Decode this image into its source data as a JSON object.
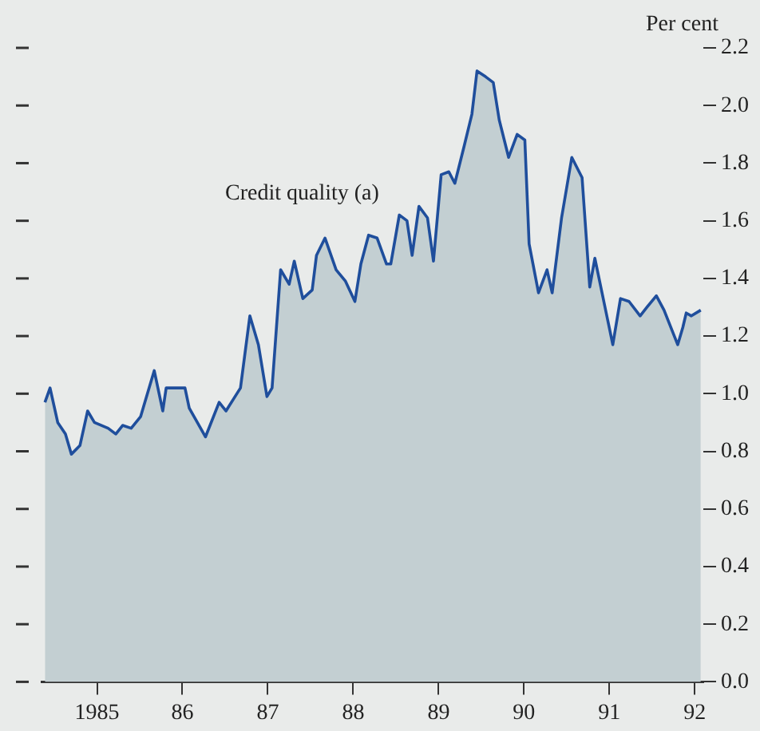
{
  "chart_data": {
    "type": "area",
    "ylabel": "Per cent",
    "annotations": [
      "Credit quality (a)"
    ],
    "xlim": [
      1984.35,
      1992.1
    ],
    "xticks": [
      {
        "value": 1985,
        "label": "1985"
      },
      {
        "value": 1986,
        "label": "86"
      },
      {
        "value": 1987,
        "label": "87"
      },
      {
        "value": 1988,
        "label": "88"
      },
      {
        "value": 1989,
        "label": "89"
      },
      {
        "value": 1990,
        "label": "90"
      },
      {
        "value": 1991,
        "label": "91"
      },
      {
        "value": 1992,
        "label": "92"
      }
    ],
    "ylim": [
      0,
      2.2
    ],
    "yticks": [
      {
        "value": 0,
        "label": "0.0"
      },
      {
        "value": 0.2,
        "label": "0.2"
      },
      {
        "value": 0.4,
        "label": "0.4"
      },
      {
        "value": 0.6,
        "label": "0.6"
      },
      {
        "value": 0.8,
        "label": "0.8"
      },
      {
        "value": 1,
        "label": "1.0"
      },
      {
        "value": 1.2,
        "label": "1.2"
      },
      {
        "value": 1.4,
        "label": "1.4"
      },
      {
        "value": 1.6,
        "label": "1.6"
      },
      {
        "value": 1.8,
        "label": "1.8"
      },
      {
        "value": 2,
        "label": "2.0"
      },
      {
        "value": 2.2,
        "label": "2.2"
      }
    ],
    "grid": false,
    "legend": false,
    "marker": "none",
    "line_style": "solid",
    "series": [
      {
        "color": "#1f4e9c",
        "x": [
          1984.39,
          1984.45,
          1984.54,
          1984.63,
          1984.7,
          1984.8,
          1984.89,
          1984.97,
          1985.13,
          1985.22,
          1985.3,
          1985.4,
          1985.51,
          1985.67,
          1985.77,
          1985.81,
          1986.03,
          1986.08,
          1986.27,
          1986.43,
          1986.51,
          1986.68,
          1986.79,
          1986.89,
          1986.99,
          1987.05,
          1987.15,
          1987.25,
          1987.31,
          1987.41,
          1987.52,
          1987.57,
          1987.67,
          1987.8,
          1987.91,
          1988.02,
          1988.09,
          1988.18,
          1988.28,
          1988.39,
          1988.44,
          1988.54,
          1988.63,
          1988.69,
          1988.77,
          1988.87,
          1988.94,
          1989.03,
          1989.12,
          1989.19,
          1989.3,
          1989.39,
          1989.45,
          1989.55,
          1989.64,
          1989.71,
          1989.82,
          1989.92,
          1990.01,
          1990.06,
          1990.17,
          1990.27,
          1990.33,
          1990.44,
          1990.56,
          1990.68,
          1990.77,
          1990.83,
          1991.04,
          1991.13,
          1991.23,
          1991.36,
          1991.44,
          1991.55,
          1991.64,
          1991.8,
          1991.86,
          1991.9,
          1991.96,
          1992.07
        ],
        "values": [
          0.97,
          1.02,
          0.9,
          0.86,
          0.79,
          0.82,
          0.94,
          0.9,
          0.88,
          0.86,
          0.89,
          0.88,
          0.92,
          1.08,
          0.94,
          1.02,
          1.02,
          0.95,
          0.85,
          0.97,
          0.94,
          1.02,
          1.27,
          1.17,
          0.99,
          1.02,
          1.43,
          1.38,
          1.46,
          1.33,
          1.36,
          1.48,
          1.54,
          1.43,
          1.39,
          1.32,
          1.45,
          1.55,
          1.54,
          1.45,
          1.45,
          1.62,
          1.6,
          1.48,
          1.65,
          1.61,
          1.46,
          1.76,
          1.77,
          1.73,
          1.86,
          1.97,
          2.12,
          2.1,
          2.08,
          1.95,
          1.82,
          1.9,
          1.88,
          1.52,
          1.35,
          1.43,
          1.35,
          1.61,
          1.82,
          1.75,
          1.37,
          1.47,
          1.17,
          1.33,
          1.32,
          1.27,
          1.3,
          1.34,
          1.29,
          1.17,
          1.23,
          1.28,
          1.27,
          1.29
        ]
      }
    ]
  }
}
